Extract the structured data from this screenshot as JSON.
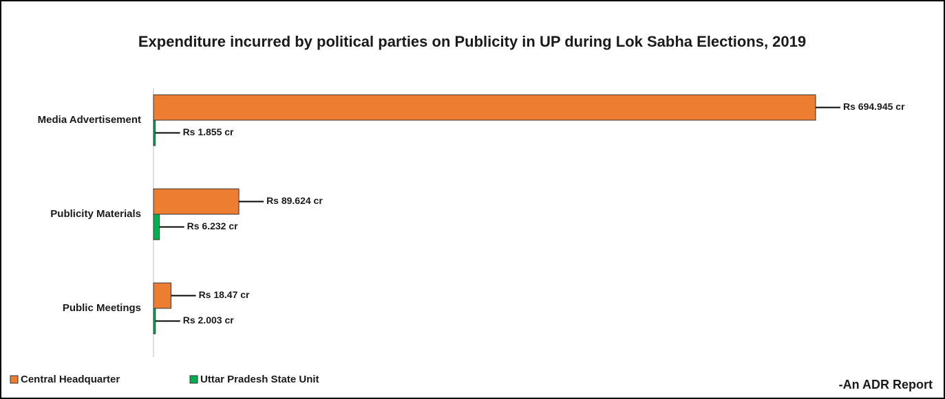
{
  "chart_data": {
    "type": "hbar",
    "title": "Expenditure incurred by political parties on Publicity in UP during Lok Sabha Elections, 2019",
    "categories": [
      "Media Advertisement",
      "Publicity Materials",
      "Public Meetings"
    ],
    "series": [
      {
        "name": "Central Headquarter",
        "color": "#ed7d31",
        "values": [
          694.945,
          89.624,
          18.47
        ],
        "value_labels": [
          "Rs 694.945 cr",
          "Rs 89.624 cr",
          "Rs 18.47 cr"
        ]
      },
      {
        "name": "Uttar Pradesh State Unit",
        "color": "#00b050",
        "values": [
          1.855,
          6.232,
          2.003
        ],
        "value_labels": [
          "Rs 1.855 cr",
          "Rs 6.232 cr",
          "Rs 2.003 cr"
        ]
      }
    ],
    "xlim": [
      0,
      700
    ],
    "annotation": "-An ADR Report",
    "legend": "bottom-left"
  }
}
